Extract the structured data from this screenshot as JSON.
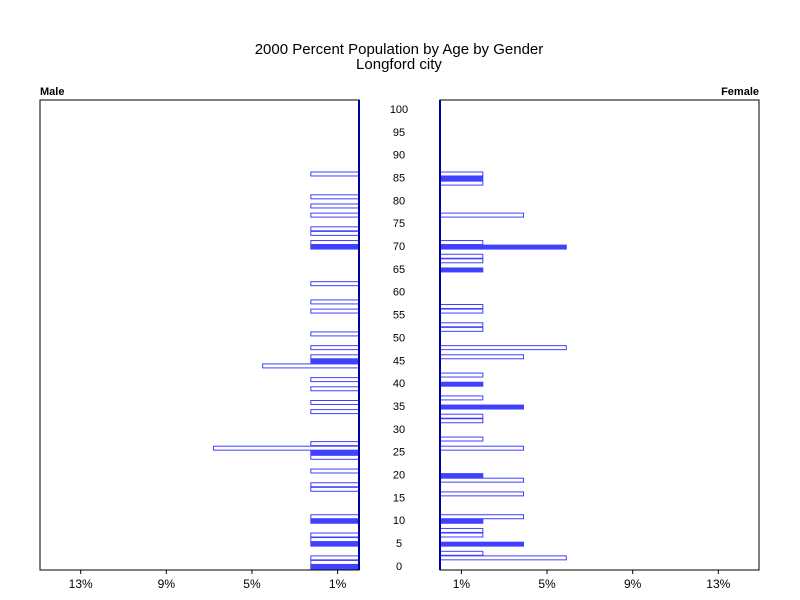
{
  "chart_data": {
    "type": "pyramid",
    "title": "2000 Percent Population by Age by Gender",
    "subtitle": "Longford city",
    "color": "#4040ff",
    "ylim": [
      0,
      100
    ],
    "yticks": [
      0,
      5,
      10,
      15,
      20,
      25,
      30,
      35,
      40,
      45,
      50,
      55,
      60,
      65,
      70,
      75,
      80,
      85,
      90,
      95,
      100
    ],
    "xlim": [
      0,
      14.9
    ],
    "xticks": [
      {
        "value": 1,
        "label": "1%"
      },
      {
        "value": 5,
        "label": "5%"
      },
      {
        "value": 9,
        "label": "9%"
      },
      {
        "value": 13,
        "label": "13%"
      }
    ],
    "panels": [
      {
        "name": "Male",
        "side": "left",
        "ages": [
          0,
          1,
          2,
          5,
          6,
          7,
          10,
          11,
          17,
          18,
          21,
          24,
          25,
          26,
          27,
          34,
          36,
          39,
          41,
          44,
          45,
          46,
          48,
          51,
          56,
          58,
          62,
          70,
          71,
          73,
          74,
          77,
          79,
          81,
          86
        ],
        "values": [
          2.25,
          2.25,
          2.25,
          2.25,
          2.25,
          2.25,
          2.25,
          2.25,
          2.25,
          2.25,
          2.25,
          2.25,
          2.25,
          6.8,
          2.25,
          2.25,
          2.25,
          2.25,
          2.25,
          4.5,
          2.25,
          2.25,
          2.25,
          2.25,
          2.25,
          2.25,
          2.25,
          2.25,
          2.25,
          2.25,
          2.25,
          2.25,
          2.25,
          2.25,
          2.25
        ]
      },
      {
        "name": "Female",
        "side": "right",
        "ages": [
          2,
          3,
          5,
          7,
          8,
          10,
          11,
          16,
          19,
          20,
          26,
          28,
          32,
          33,
          35,
          37,
          40,
          42,
          46,
          48,
          52,
          53,
          56,
          57,
          65,
          67,
          68,
          70,
          71,
          77,
          84,
          85,
          86
        ],
        "values": [
          5.9,
          2.0,
          3.9,
          2.0,
          2.0,
          2.0,
          3.9,
          3.9,
          3.9,
          2.0,
          3.9,
          2.0,
          2.0,
          2.0,
          3.9,
          2.0,
          2.0,
          2.0,
          3.9,
          5.9,
          2.0,
          2.0,
          2.0,
          2.0,
          2.0,
          2.0,
          2.0,
          5.9,
          2.0,
          3.9,
          2.0,
          2.0,
          2.0
        ]
      }
    ]
  }
}
